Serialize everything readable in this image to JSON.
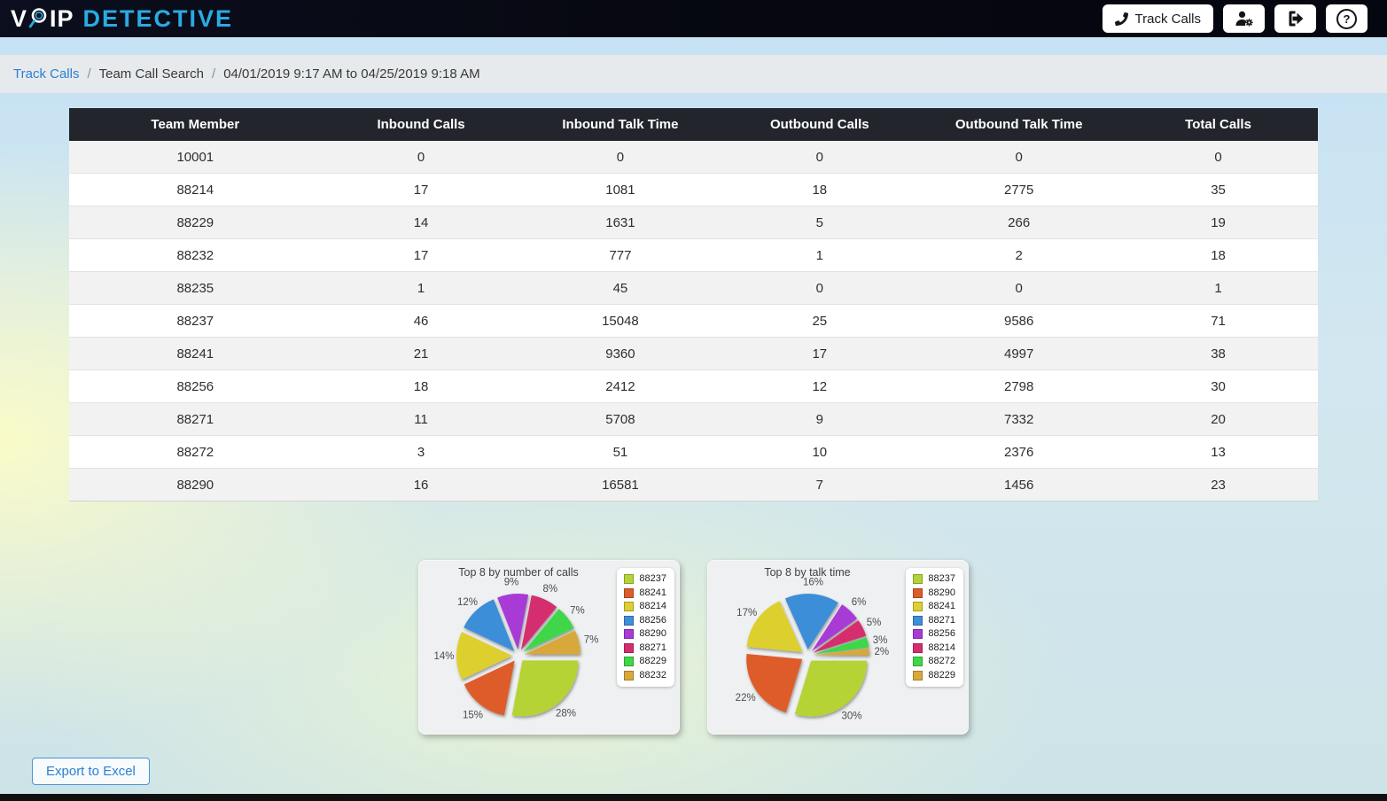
{
  "header": {
    "logo_v": "V",
    "logo_ip": "IP",
    "logo_detective": "DETECTIVE",
    "track_calls_label": "Track Calls",
    "help_glyph": "?",
    "colors": {
      "detective_text": "#29abe2",
      "bar_bg": "#07090f"
    }
  },
  "breadcrumb": {
    "link": "Track Calls",
    "separator": "/",
    "page": "Team Call Search",
    "range": "04/01/2019 9:17 AM to 04/25/2019 9:18 AM"
  },
  "table": {
    "columns": [
      "Team Member",
      "Inbound Calls",
      "Inbound Talk Time",
      "Outbound Calls",
      "Outbound Talk Time",
      "Total Calls"
    ],
    "rows": [
      [
        "10001",
        "0",
        "0",
        "0",
        "0",
        "0"
      ],
      [
        "88214",
        "17",
        "1081",
        "18",
        "2775",
        "35"
      ],
      [
        "88229",
        "14",
        "1631",
        "5",
        "266",
        "19"
      ],
      [
        "88232",
        "17",
        "777",
        "1",
        "2",
        "18"
      ],
      [
        "88235",
        "1",
        "45",
        "0",
        "0",
        "1"
      ],
      [
        "88237",
        "46",
        "15048",
        "25",
        "9586",
        "71"
      ],
      [
        "88241",
        "21",
        "9360",
        "17",
        "4997",
        "38"
      ],
      [
        "88256",
        "18",
        "2412",
        "12",
        "2798",
        "30"
      ],
      [
        "88271",
        "11",
        "5708",
        "9",
        "7332",
        "20"
      ],
      [
        "88272",
        "3",
        "51",
        "10",
        "2376",
        "13"
      ],
      [
        "88290",
        "16",
        "16581",
        "7",
        "1456",
        "23"
      ]
    ],
    "stripe_color": "#f2f2f2",
    "header_bg": "#22262c"
  },
  "chart_data": [
    {
      "type": "pie",
      "title": "Top 8 by number of calls",
      "labels": [
        "88237",
        "88241",
        "88214",
        "88256",
        "88290",
        "88271",
        "88229",
        "88232"
      ],
      "values_pct": [
        28,
        15,
        14,
        12,
        9,
        8,
        7,
        7
      ],
      "colors": [
        "#b5d335",
        "#de5b2b",
        "#ddd02f",
        "#3e8ed9",
        "#a83bd6",
        "#d42e6e",
        "#3fd64a",
        "#d8a83a"
      ],
      "legend_position": "right",
      "start_angle_deg": 0,
      "direction": "clockwise",
      "exploded": true
    },
    {
      "type": "pie",
      "title": "Top 8 by talk time",
      "labels": [
        "88237",
        "88290",
        "88241",
        "88271",
        "88256",
        "88214",
        "88272",
        "88229"
      ],
      "values_pct": [
        30,
        22,
        17,
        16,
        6,
        5,
        3,
        2
      ],
      "colors": [
        "#b5d335",
        "#de5b2b",
        "#ddd02f",
        "#3e8ed9",
        "#a83bd6",
        "#d42e6e",
        "#3fd64a",
        "#d8a83a"
      ],
      "legend_position": "right",
      "start_angle_deg": 0,
      "direction": "clockwise",
      "exploded": true
    }
  ],
  "export_button_label": "Export to Excel",
  "link_color": "#2a7fd4"
}
